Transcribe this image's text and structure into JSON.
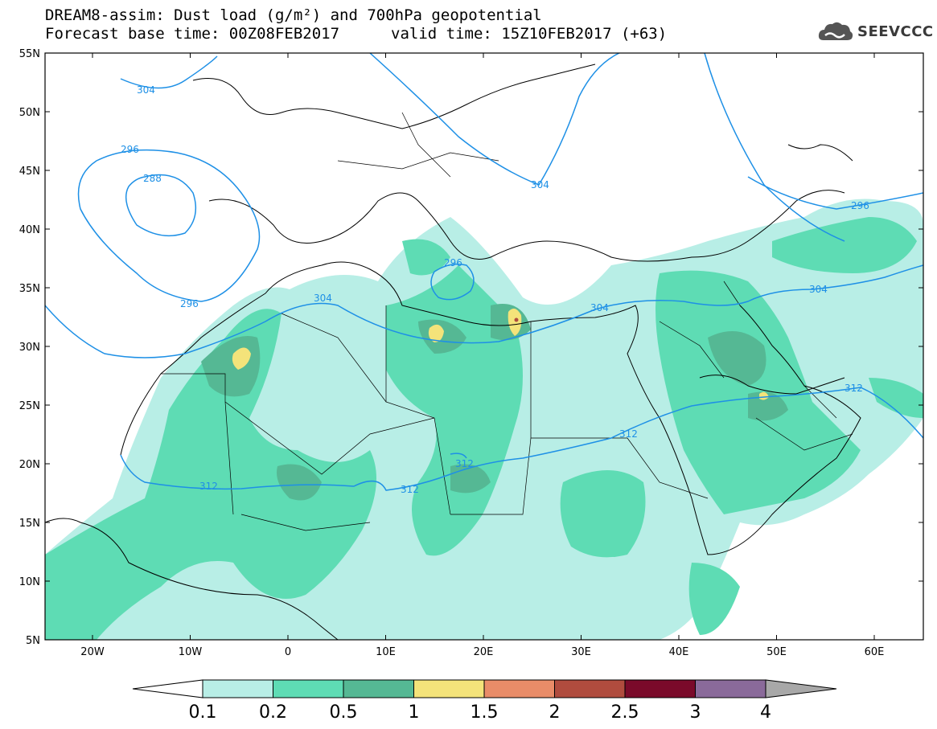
{
  "title": {
    "line1": "DREAM8-assim: Dust load (g/m²) and 700hPa geopotential",
    "line2a": "Forecast base time: 00Z08FEB2017",
    "line2b": "valid time: 15Z10FEB2017 (+63)"
  },
  "logo": {
    "text": "SEEVCCC",
    "icon": "cloud-icon"
  },
  "map": {
    "lat_ticks": [
      "55N",
      "50N",
      "45N",
      "40N",
      "35N",
      "30N",
      "25N",
      "20N",
      "15N",
      "10N",
      "5N"
    ],
    "lon_ticks": [
      "20W",
      "10W",
      "0",
      "10E",
      "20E",
      "30E",
      "40E",
      "50E",
      "60E"
    ],
    "contour_labels": [
      "304",
      "296",
      "288",
      "296",
      "304",
      "296",
      "304",
      "304",
      "304",
      "296",
      "312",
      "312",
      "312",
      "312",
      "312"
    ]
  },
  "colorbar": {
    "labels": [
      "0.1",
      "0.2",
      "0.5",
      "1",
      "1.5",
      "2",
      "2.5",
      "3",
      "4"
    ],
    "colors": [
      "#b8eee6",
      "#5edcb4",
      "#55b894",
      "#f4e37a",
      "#e98c68",
      "#b04c3e",
      "#7a0a2a",
      "#8a6a9a",
      "#a8a8a8"
    ]
  }
}
